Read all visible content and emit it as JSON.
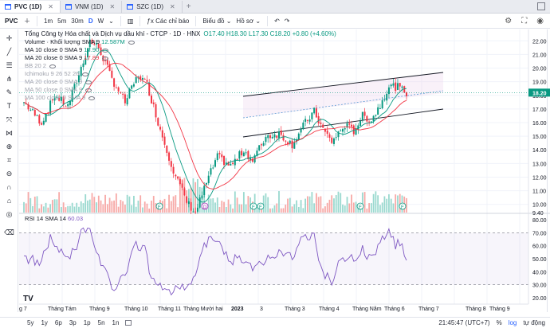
{
  "tabs": [
    {
      "label": "PVC (1D)",
      "active": true
    },
    {
      "label": "VNM (1D)",
      "active": false
    },
    {
      "label": "SZC (1D)",
      "active": false
    }
  ],
  "toolbar": {
    "symbol": "PVC",
    "intervals": [
      "1m",
      "5m",
      "30m",
      "D",
      "W"
    ],
    "active_interval": "D",
    "alerts": "Các chỉ báo",
    "chart_type": "Biểu đồ",
    "profile": "Hồ sơ"
  },
  "legend": {
    "title": "Tổng Công ty Hóa chất và Dịch vụ dầu khí - CTCP · 1D · HNX",
    "ohlc": "O17.40 H18.30 L17.30 C18.20 +0.80 (+4.60%)",
    "indicators": [
      {
        "label": "Volume · Khối lượng SMA 9",
        "value": "12.587M",
        "tone": "green"
      },
      {
        "label": "MA 10 close 0 SMA 9",
        "value": "17.90",
        "tone": "green"
      },
      {
        "label": "MA 20 close 0 SMA 9",
        "value": "17.89",
        "tone": "red"
      },
      {
        "label": "BB 20 2",
        "value": "",
        "tone": "gray"
      },
      {
        "label": "Ichimoku 9 26 52 26",
        "value": "",
        "tone": "gray"
      },
      {
        "label": "MA 20 close 0 SMA 9",
        "value": "",
        "tone": "gray"
      },
      {
        "label": "MA 50 close 0 SMA 9",
        "value": "",
        "tone": "gray"
      },
      {
        "label": "MA 100 close 0 SMA 9",
        "value": "",
        "tone": "gray"
      }
    ]
  },
  "rsi": {
    "label": "RSI 14 SMA 14",
    "value": "60.03"
  },
  "price_axis": {
    "ticks": [
      "22.00",
      "21.00",
      "20.00",
      "19.00",
      "18.00",
      "17.00",
      "16.00",
      "15.00",
      "14.00",
      "13.00",
      "12.00",
      "11.00",
      "10.00",
      "9.40"
    ],
    "current": "18.20"
  },
  "rsi_axis": {
    "ticks": [
      "80.00",
      "70.00",
      "60.00",
      "50.00",
      "40.00",
      "30.00",
      "20.00"
    ]
  },
  "time_axis": {
    "labels": [
      "g 7",
      "Tháng Tám",
      "Tháng 9",
      "Tháng 10",
      "Tháng 11",
      "Tháng Mười hai",
      "2023",
      "3",
      "Tháng 3",
      "Tháng 4",
      "Tháng Năm",
      "Tháng 6",
      "Tháng 7",
      "Tháng 8",
      "Tháng 9"
    ]
  },
  "ranges": [
    "5y",
    "1y",
    "6p",
    "3p",
    "1p",
    "5n",
    "1n"
  ],
  "bottom_right": {
    "time": "21:45:47 (UTC+7)",
    "pct": "%",
    "log": "log",
    "auto": "tự động"
  },
  "logo": "TV",
  "colors": {
    "up": "#089981",
    "down": "#f23645",
    "ma_red": "#f23645",
    "ma_green": "#089981",
    "rsi": "#7e57c2",
    "channel": "#131722",
    "accent": "#2962ff"
  }
}
